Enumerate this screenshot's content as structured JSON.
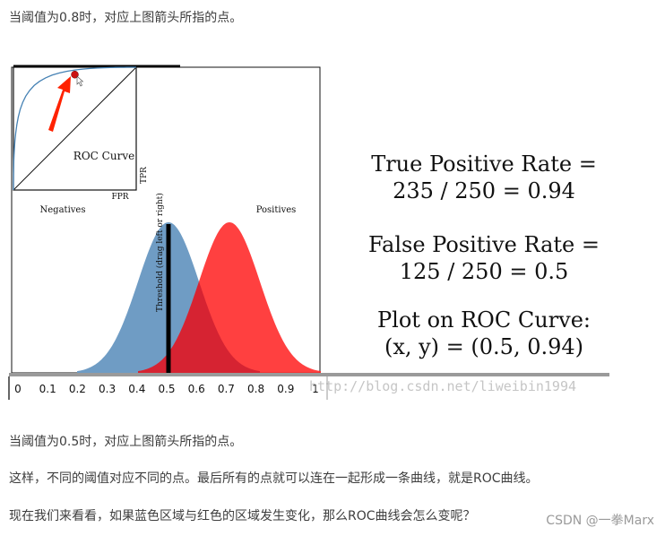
{
  "text": {
    "top": "当阈值为0.8时，对应上图箭头所指的点。",
    "p1": "当阈值为0.5时，对应上图箭头所指的点。",
    "p2": "这样，不同的阈值对应不同的点。最后所有的点就可以连在一起形成一条曲线，就是ROC曲线。",
    "p3": "现在我们来看看，如果蓝色区域与红色的区域发生变化，那么ROC曲线会怎么变呢？",
    "watermark_url": "http://blog.csdn.net/liweibin1994",
    "watermark_csdn": "CSDN @一拳Marx"
  },
  "captions": {
    "tpr_line1": "True Positive Rate =",
    "tpr_line2": "235 / 250 = 0.94",
    "fpr_line1": "False Positive Rate =",
    "fpr_line2": "125 / 250 = 0.5",
    "plot_line1": "Plot on ROC Curve:",
    "plot_line2": "(x, y) = (0.5, 0.94)"
  },
  "chart_data": [
    {
      "type": "area",
      "labels": {
        "negatives": "Negatives",
        "positives": "Positives",
        "threshold": "Threshold (drag left or right)"
      },
      "xlim": [
        0,
        1
      ],
      "ticks": [
        "0",
        "0.1",
        "0.2",
        "0.3",
        "0.4",
        "0.5",
        "0.6",
        "0.7",
        "0.8",
        "0.9",
        "1"
      ],
      "series": [
        {
          "name": "Negatives",
          "mean": 0.5,
          "sd": 0.1,
          "range": [
            0.2,
            0.8
          ],
          "color": "#6f9cc4"
        },
        {
          "name": "Positives",
          "mean": 0.7,
          "sd": 0.1,
          "range": [
            0.4,
            1.0
          ],
          "color": "#ff2b2b"
        }
      ],
      "overlap_color": "#d42332",
      "threshold": 0.5
    },
    {
      "type": "line",
      "title": "ROC Curve",
      "xlabel": "FPR",
      "ylabel": "TPR",
      "xlim": [
        0,
        1
      ],
      "ylim": [
        0,
        1
      ],
      "curve_color": "#4682b4",
      "point": {
        "x": 0.5,
        "y": 0.94,
        "color": "#cc1111"
      },
      "arrow_color": "#ff2200"
    }
  ]
}
